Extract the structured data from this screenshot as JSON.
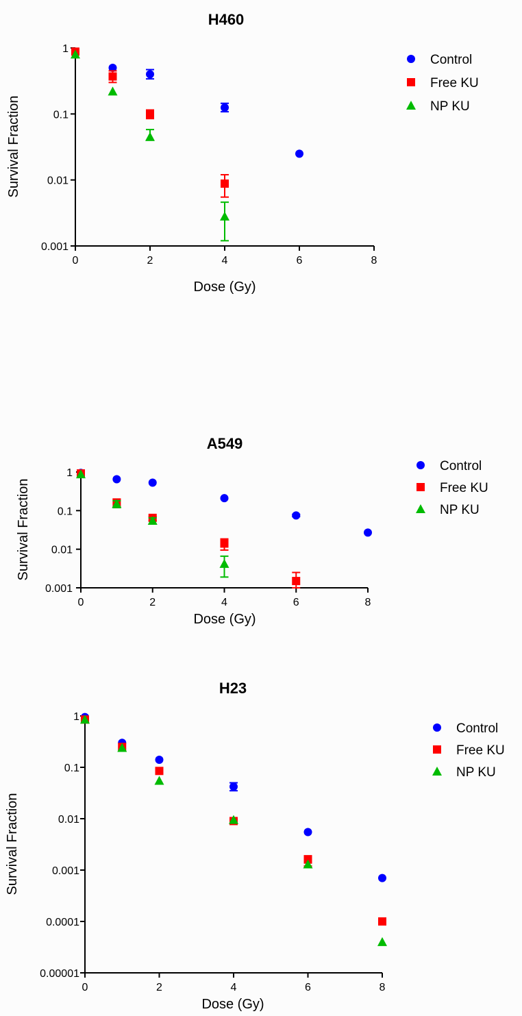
{
  "chart_data": [
    {
      "type": "scatter",
      "title": "H460",
      "xlabel": "Dose  (Gy)",
      "ylabel": "Survival Fraction",
      "xlim": [
        0,
        8
      ],
      "ylim": [
        0.001,
        1
      ],
      "y_scale": "log",
      "x_ticks": [
        "0",
        "2",
        "4",
        "6",
        "8"
      ],
      "y_ticks": [
        "0.001",
        "0.01",
        "0.1",
        "1"
      ],
      "legend_position": "top-right",
      "series": [
        {
          "name": "Control",
          "marker": "circle",
          "color": "#0000ff",
          "points": [
            {
              "x": 0,
              "y": 0.85
            },
            {
              "x": 1,
              "y": 0.5
            },
            {
              "x": 2,
              "y": 0.4,
              "err": [
                0.34,
                0.47
              ]
            },
            {
              "x": 4,
              "y": 0.125,
              "err": [
                0.108,
                0.145
              ]
            },
            {
              "x": 6,
              "y": 0.025
            }
          ]
        },
        {
          "name": "Free KU",
          "marker": "square",
          "color": "#ff0000",
          "points": [
            {
              "x": 0,
              "y": 0.88
            },
            {
              "x": 1,
              "y": 0.37,
              "err": [
                0.3,
                0.45
              ]
            },
            {
              "x": 2,
              "y": 0.1,
              "err": [
                0.085,
                0.115
              ]
            },
            {
              "x": 4,
              "y": 0.0088,
              "err": [
                0.0055,
                0.012
              ]
            }
          ]
        },
        {
          "name": "NP KU",
          "marker": "triangle",
          "color": "#00bb00",
          "points": [
            {
              "x": 0,
              "y": 0.8
            },
            {
              "x": 1,
              "y": 0.22
            },
            {
              "x": 2,
              "y": 0.045,
              "err": [
                0.04,
                0.058
              ]
            },
            {
              "x": 4,
              "y": 0.0028,
              "err": [
                0.0012,
                0.0046
              ]
            }
          ]
        }
      ]
    },
    {
      "type": "scatter",
      "title": "A549",
      "xlabel": "Dose (Gy)",
      "ylabel": "Survival Fraction",
      "xlim": [
        0,
        8
      ],
      "ylim": [
        0.001,
        1
      ],
      "y_scale": "log",
      "x_ticks": [
        "0",
        "2",
        "4",
        "6",
        "8"
      ],
      "y_ticks": [
        "0.001",
        "0.01",
        "0.1",
        "1"
      ],
      "legend_position": "top-right",
      "series": [
        {
          "name": "Control",
          "marker": "circle",
          "color": "#0000ff",
          "points": [
            {
              "x": 0,
              "y": 0.95
            },
            {
              "x": 1,
              "y": 0.65
            },
            {
              "x": 2,
              "y": 0.53
            },
            {
              "x": 4,
              "y": 0.21
            },
            {
              "x": 6,
              "y": 0.075,
              "err": [
                0.07,
                0.08
              ]
            },
            {
              "x": 8,
              "y": 0.027
            }
          ]
        },
        {
          "name": "Free KU",
          "marker": "square",
          "color": "#ff0000",
          "points": [
            {
              "x": 0,
              "y": 0.92
            },
            {
              "x": 1,
              "y": 0.16,
              "err": [
                0.12,
                0.2
              ]
            },
            {
              "x": 2,
              "y": 0.065,
              "err": [
                0.055,
                0.07
              ]
            },
            {
              "x": 4,
              "y": 0.014,
              "err": [
                0.0095,
                0.0185
              ]
            },
            {
              "x": 6,
              "y": 0.0015,
              "err": [
                0.001,
                0.0025
              ]
            }
          ]
        },
        {
          "name": "NP KU",
          "marker": "triangle",
          "color": "#00bb00",
          "points": [
            {
              "x": 0,
              "y": 0.88
            },
            {
              "x": 1,
              "y": 0.15,
              "err": [
                0.12,
                0.18
              ]
            },
            {
              "x": 2,
              "y": 0.055,
              "err": [
                0.045,
                0.065
              ]
            },
            {
              "x": 4,
              "y": 0.0042,
              "err": [
                0.0019,
                0.0066
              ]
            }
          ]
        }
      ]
    },
    {
      "type": "scatter",
      "title": "H23",
      "xlabel": "Dose (Gy)",
      "ylabel": "Survival Fraction",
      "xlim": [
        0,
        8
      ],
      "ylim": [
        1e-05,
        1
      ],
      "y_scale": "log",
      "x_ticks": [
        "0",
        "2",
        "4",
        "6",
        "8"
      ],
      "y_ticks": [
        "0.00001",
        "0.0001",
        "0.001",
        "0.01",
        "0.1",
        "1"
      ],
      "legend_position": "top-right",
      "series": [
        {
          "name": "Control",
          "marker": "circle",
          "color": "#0000ff",
          "points": [
            {
              "x": 0,
              "y": 0.95
            },
            {
              "x": 1,
              "y": 0.3
            },
            {
              "x": 2,
              "y": 0.14
            },
            {
              "x": 4,
              "y": 0.042,
              "err": [
                0.035,
                0.05
              ]
            },
            {
              "x": 6,
              "y": 0.0055
            },
            {
              "x": 8,
              "y": 0.0007
            }
          ]
        },
        {
          "name": "Free KU",
          "marker": "square",
          "color": "#ff0000",
          "points": [
            {
              "x": 0,
              "y": 0.85
            },
            {
              "x": 1,
              "y": 0.25
            },
            {
              "x": 2,
              "y": 0.085
            },
            {
              "x": 4,
              "y": 0.009
            },
            {
              "x": 6,
              "y": 0.0016,
              "err": [
                0.0012,
                0.0019
              ]
            },
            {
              "x": 8,
              "y": 0.0001
            }
          ]
        },
        {
          "name": "NP KU",
          "marker": "triangle",
          "color": "#00bb00",
          "points": [
            {
              "x": 0,
              "y": 0.85
            },
            {
              "x": 1,
              "y": 0.24
            },
            {
              "x": 2,
              "y": 0.055
            },
            {
              "x": 4,
              "y": 0.0095
            },
            {
              "x": 6,
              "y": 0.0013
            },
            {
              "x": 8,
              "y": 4e-05
            }
          ]
        }
      ]
    }
  ]
}
